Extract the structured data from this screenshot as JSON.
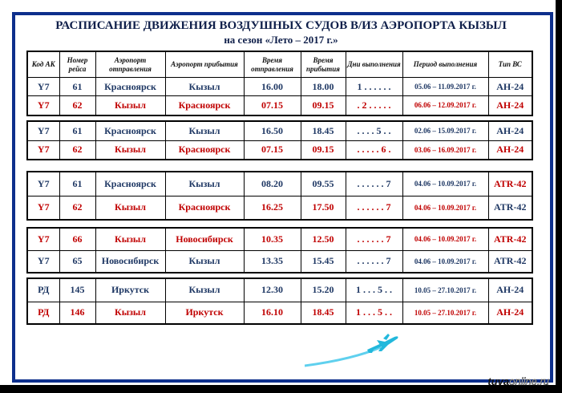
{
  "title": "РАСПИСАНИЕ ДВИЖЕНИЯ ВОЗДУШНЫХ СУДОВ  В/ИЗ  АЭРОПОРТА КЫЗЫЛ",
  "subtitle": "на сезон «Лето – 2017 г.»",
  "headers": [
    "Код АК",
    "Номер рейса",
    "Аэропорт отправления",
    "Аэропорт прибытия",
    "Время отправления",
    "Время прибытия",
    "Дни выполнения",
    "Период выполнения",
    "Тип ВС"
  ],
  "colors": {
    "blue": "#1f3864",
    "red": "#c00000",
    "frame": "#0d2f8c"
  },
  "groups": [
    {
      "rows": [
        {
          "color": "blue",
          "type_color": "blue",
          "cells": [
            "Y7",
            "61",
            "Красноярск",
            "Кызыл",
            "16.00",
            "18.00",
            "1 . . . . . .",
            "05.06 – 11.09.2017 г.",
            "АН-24"
          ]
        },
        {
          "color": "red",
          "type_color": "red",
          "cells": [
            "Y7",
            "62",
            "Кызыл",
            "Красноярск",
            "07.15",
            "09.15",
            ". 2 . . . . .",
            "06.06 – 12.09.2017 г.",
            "АН-24"
          ]
        }
      ]
    },
    {
      "rows": [
        {
          "color": "blue",
          "type_color": "blue",
          "cells": [
            "Y7",
            "61",
            "Красноярск",
            "Кызыл",
            "16.50",
            "18.45",
            ". . . . 5 . .",
            "02.06 – 15.09.2017 г.",
            "АН-24"
          ]
        },
        {
          "color": "red",
          "type_color": "red",
          "cells": [
            "Y7",
            "62",
            "Кызыл",
            "Красноярск",
            "07.15",
            "09.15",
            ". . . . . 6 .",
            "03.06 – 16.09.2017 г.",
            "АН-24"
          ]
        }
      ]
    },
    {
      "rows": [
        {
          "color": "blue",
          "type_color": "red",
          "cells": [
            "Y7",
            "61",
            "Красноярск",
            "Кызыл",
            "08.20",
            "09.55",
            ". . . . . . 7",
            "04.06 – 10.09.2017 г.",
            "ATR-42"
          ]
        },
        {
          "color": "red",
          "type_color": "blue",
          "cells": [
            "Y7",
            "62",
            "Кызыл",
            "Красноярск",
            "16.25",
            "17.50",
            ". . . . . . 7",
            "04.06 – 10.09.2017 г.",
            "ATR-42"
          ]
        }
      ]
    },
    {
      "rows": [
        {
          "color": "red",
          "type_color": "red",
          "cells": [
            "Y7",
            "66",
            "Кызыл",
            "Новосибирск",
            "10.35",
            "12.50",
            ". . . . . . 7",
            "04.06 – 10.09.2017 г.",
            "ATR-42"
          ]
        },
        {
          "color": "blue",
          "type_color": "blue",
          "cells": [
            "Y7",
            "65",
            "Новосибирск",
            "Кызыл",
            "13.35",
            "15.45",
            ". . . . . . 7",
            "04.06 – 10.09.2017 г.",
            "ATR-42"
          ]
        }
      ]
    },
    {
      "rows": [
        {
          "color": "blue",
          "type_color": "blue",
          "cells": [
            "РД",
            "145",
            "Иркутск",
            "Кызыл",
            "12.30",
            "15.20",
            "1 . . . 5 . .",
            "10.05 – 27.10.2017 г.",
            "АН-24"
          ]
        },
        {
          "color": "red",
          "type_color": "red",
          "cells": [
            "РД",
            "146",
            "Кызыл",
            "Иркутск",
            "16.10",
            "18.45",
            "1 . . . 5 . .",
            "10.05 – 27.10.2017 г.",
            "АН-24"
          ]
        }
      ]
    }
  ],
  "watermark": {
    "part1": "tuva",
    "part2": "online.ru"
  }
}
